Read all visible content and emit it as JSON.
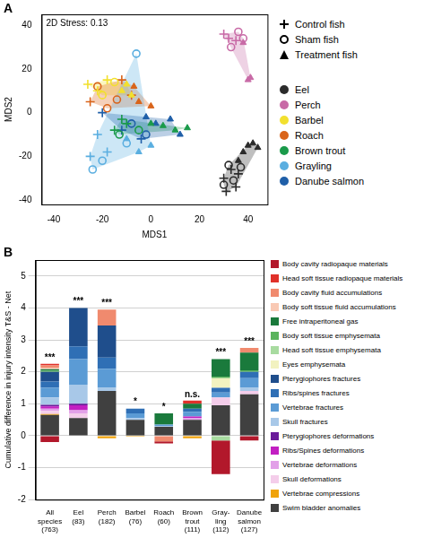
{
  "chart_data": [
    {
      "type": "scatter",
      "panel": "A",
      "annotation": "2D Stress: 0.13",
      "x_label": "MDS1",
      "y_label": "MDS2",
      "xlim": [
        -45,
        48
      ],
      "xticks": [
        -40,
        -20,
        0,
        20,
        40
      ],
      "ylim": [
        -42,
        45
      ],
      "yticks": [
        -40,
        -20,
        0,
        20,
        40
      ],
      "grid": false,
      "legend": "right",
      "series": [
        {
          "name": "Eel",
          "group": "Control fish",
          "marker": "cross",
          "color": "#2b2b2b",
          "x": [
            30,
            33,
            35,
            31,
            36
          ],
          "values": [
            -30,
            -26,
            -34,
            -36,
            -28
          ]
        },
        {
          "name": "Eel",
          "group": "Sham fish",
          "marker": "circle",
          "color": "#2b2b2b",
          "x": [
            32,
            34,
            30,
            37
          ],
          "values": [
            -24,
            -31,
            -33,
            -25
          ]
        },
        {
          "name": "Eel",
          "group": "Treatment fish",
          "marker": "triangle",
          "color": "#2b2b2b",
          "x": [
            40,
            44,
            38,
            42,
            36
          ],
          "values": [
            -15,
            -16,
            -18,
            -14,
            -22
          ]
        },
        {
          "name": "Perch",
          "group": "Control fish",
          "marker": "cross",
          "color": "#c86aa6",
          "x": [
            32,
            35,
            30
          ],
          "values": [
            34,
            33,
            36
          ]
        },
        {
          "name": "Perch",
          "group": "Sham fish",
          "marker": "circle",
          "color": "#c86aa6",
          "x": [
            33,
            36,
            38
          ],
          "values": [
            30,
            37,
            34
          ]
        },
        {
          "name": "Perch",
          "group": "Treatment fish",
          "marker": "triangle",
          "color": "#c86aa6",
          "x": [
            38,
            40,
            41
          ],
          "values": [
            32,
            15,
            16
          ]
        },
        {
          "name": "Barbel",
          "group": "Control fish",
          "marker": "cross",
          "color": "#f2e02e",
          "x": [
            -22,
            -18,
            -26
          ],
          "values": [
            10,
            15,
            13
          ]
        },
        {
          "name": "Barbel",
          "group": "Sham fish",
          "marker": "circle",
          "color": "#f2e02e",
          "x": [
            -20,
            -15
          ],
          "values": [
            8,
            14
          ]
        },
        {
          "name": "Barbel",
          "group": "Treatment fish",
          "marker": "triangle",
          "color": "#f2e02e",
          "x": [
            -12,
            -10,
            -8
          ],
          "values": [
            10,
            13,
            8
          ]
        },
        {
          "name": "Roach",
          "group": "Control fish",
          "marker": "cross",
          "color": "#d9641a",
          "x": [
            -25,
            -12,
            -8
          ],
          "values": [
            5,
            15,
            8
          ]
        },
        {
          "name": "Roach",
          "group": "Sham fish",
          "marker": "circle",
          "color": "#d9641a",
          "x": [
            -18,
            -22,
            -14
          ],
          "values": [
            2,
            12,
            6
          ]
        },
        {
          "name": "Roach",
          "group": "Treatment fish",
          "marker": "triangle",
          "color": "#d9641a",
          "x": [
            -5,
            0,
            -7
          ],
          "values": [
            5,
            3,
            12
          ]
        },
        {
          "name": "Brown trout",
          "group": "Control fish",
          "marker": "cross",
          "color": "#1a9a4a",
          "x": [
            -15,
            -10,
            -12
          ],
          "values": [
            -8,
            -5,
            -3
          ]
        },
        {
          "name": "Brown trout",
          "group": "Sham fish",
          "marker": "circle",
          "color": "#1a9a4a",
          "x": [
            -13,
            -5
          ],
          "values": [
            -10,
            -8
          ]
        },
        {
          "name": "Brown trout",
          "group": "Treatment fish",
          "marker": "triangle",
          "color": "#1a9a4a",
          "x": [
            5,
            10,
            15,
            0
          ],
          "values": [
            -6,
            -8,
            -7,
            -5
          ]
        },
        {
          "name": "Grayling",
          "group": "Control fish",
          "marker": "cross",
          "color": "#5aaee0",
          "x": [
            -25,
            -18,
            -22
          ],
          "values": [
            -20,
            -18,
            -10
          ]
        },
        {
          "name": "Grayling",
          "group": "Sham fish",
          "marker": "circle",
          "color": "#5aaee0",
          "x": [
            -20,
            -10,
            -6,
            -24
          ],
          "values": [
            -22,
            -14,
            27,
            -26
          ]
        },
        {
          "name": "Grayling",
          "group": "Treatment fish",
          "marker": "triangle",
          "color": "#5aaee0",
          "x": [
            -5,
            0,
            -10
          ],
          "values": [
            -18,
            -15,
            -12
          ]
        },
        {
          "name": "Danube salmon",
          "group": "Control fish",
          "marker": "cross",
          "color": "#1f5fa8",
          "x": [
            -12,
            -20,
            -4
          ],
          "values": [
            -8,
            0,
            -12
          ]
        },
        {
          "name": "Danube salmon",
          "group": "Sham fish",
          "marker": "circle",
          "color": "#1f5fa8",
          "x": [
            -8,
            -2
          ],
          "values": [
            -5,
            -10
          ]
        },
        {
          "name": "Danube salmon",
          "group": "Treatment fish",
          "marker": "triangle",
          "color": "#1f5fa8",
          "x": [
            8,
            2,
            -2,
            12
          ],
          "values": [
            -3,
            -5,
            -2,
            -10
          ]
        }
      ]
    },
    {
      "type": "bar",
      "panel": "B",
      "y_label": "Cumulative difference in injury intensity T&S - Net",
      "stacked": true,
      "grid": true,
      "legend": "right",
      "ylim": [
        -2,
        5.5
      ],
      "yticks": [
        -2,
        -1,
        0,
        1,
        2,
        3,
        4,
        5
      ],
      "categories": [
        [
          "All",
          "species",
          "(763)"
        ],
        [
          "Eel",
          "(83)"
        ],
        [
          "Perch",
          "(182)"
        ],
        [
          "Barbel",
          "(76)"
        ],
        [
          "Roach",
          "(60)"
        ],
        [
          "Brown",
          "trout",
          "(111)"
        ],
        [
          "Gray-",
          "ling",
          "(112)"
        ],
        [
          "Danube",
          "salmon",
          "(127)"
        ]
      ],
      "annotations": [
        "***",
        "***",
        "***",
        "*",
        "*",
        "n.s.",
        "***",
        "***"
      ],
      "series": [
        {
          "name": "Body cavity radiopaque materials",
          "color": "#b2182b",
          "values": [
            -0.2,
            0,
            0,
            0,
            -0.06,
            0,
            -1.05,
            -0.15
          ]
        },
        {
          "name": "Head soft tissue radiopaque materials",
          "color": "#e0312a",
          "values": [
            0.05,
            0,
            0,
            0,
            0,
            0.1,
            0,
            0
          ]
        },
        {
          "name": "Body cavity fluid accumulations",
          "color": "#f08a6e",
          "values": [
            0.07,
            0,
            0.5,
            0,
            -0.18,
            0,
            0,
            0.15
          ]
        },
        {
          "name": "Body soft tissue fluid accumulations",
          "color": "#f9c9b4",
          "values": [
            0.05,
            0,
            0,
            0,
            0,
            0,
            0,
            0
          ]
        },
        {
          "name": "Free intraperitoneal gas",
          "color": "#1a7a3c",
          "values": [
            0.05,
            0,
            0,
            0,
            0.35,
            0.15,
            0.55,
            0.55
          ]
        },
        {
          "name": "Body soft tissue emphysemata",
          "color": "#5bb45e",
          "values": [
            0.03,
            0,
            0,
            0,
            0,
            0,
            0.05,
            0.05
          ]
        },
        {
          "name": "Head soft tissue emphysemata",
          "color": "#a8dba0",
          "values": [
            0,
            0,
            0,
            0,
            0,
            0,
            -0.15,
            0
          ]
        },
        {
          "name": "Eyes emphysemata",
          "color": "#f2f2c0",
          "values": [
            0,
            0,
            0,
            0,
            0,
            0,
            0.3,
            0
          ]
        },
        {
          "name": "Pterygiophores fractures",
          "color": "#1f4e8c",
          "values": [
            0.3,
            1.2,
            1.0,
            0,
            0,
            0,
            0,
            0
          ]
        },
        {
          "name": "Ribs/spines fractures",
          "color": "#2f6fb5",
          "values": [
            0.2,
            0.4,
            0.35,
            0.15,
            0,
            0.1,
            0.15,
            0.2
          ]
        },
        {
          "name": "Vertebrae fractures",
          "color": "#5b9bd5",
          "values": [
            0.3,
            0.8,
            0.6,
            0.15,
            0.05,
            0.15,
            0.15,
            0.3
          ]
        },
        {
          "name": "Skull fractures",
          "color": "#a8c8e8",
          "values": [
            0.23,
            0.6,
            0.1,
            0.05,
            0.02,
            0,
            0,
            0.1
          ]
        },
        {
          "name": "Pterygiophores deformations",
          "color": "#6a1b9a",
          "values": [
            0.05,
            0.05,
            0,
            0,
            0,
            0,
            0,
            0
          ]
        },
        {
          "name": "Ribs/Spines deformations",
          "color": "#c21fc2",
          "values": [
            0.07,
            0.15,
            0,
            0,
            0,
            0.05,
            0,
            0
          ]
        },
        {
          "name": "Vertebrae deformations",
          "color": "#e2a0e8",
          "values": [
            0.07,
            0.1,
            0,
            0,
            0,
            0.05,
            0,
            0
          ]
        },
        {
          "name": "Skull deformations",
          "color": "#f4cdea",
          "values": [
            0.1,
            0.15,
            0,
            0,
            0,
            0,
            0.25,
            0.1
          ]
        },
        {
          "name": "Vertebrae compressions",
          "color": "#f0a30a",
          "values": [
            0.03,
            0,
            -0.08,
            -0.03,
            0,
            -0.08,
            0,
            0
          ]
        },
        {
          "name": "Swim bladder anomalies",
          "color": "#404040",
          "values": [
            0.65,
            0.55,
            1.4,
            0.5,
            0.28,
            0.5,
            0.95,
            1.3
          ]
        }
      ]
    }
  ]
}
